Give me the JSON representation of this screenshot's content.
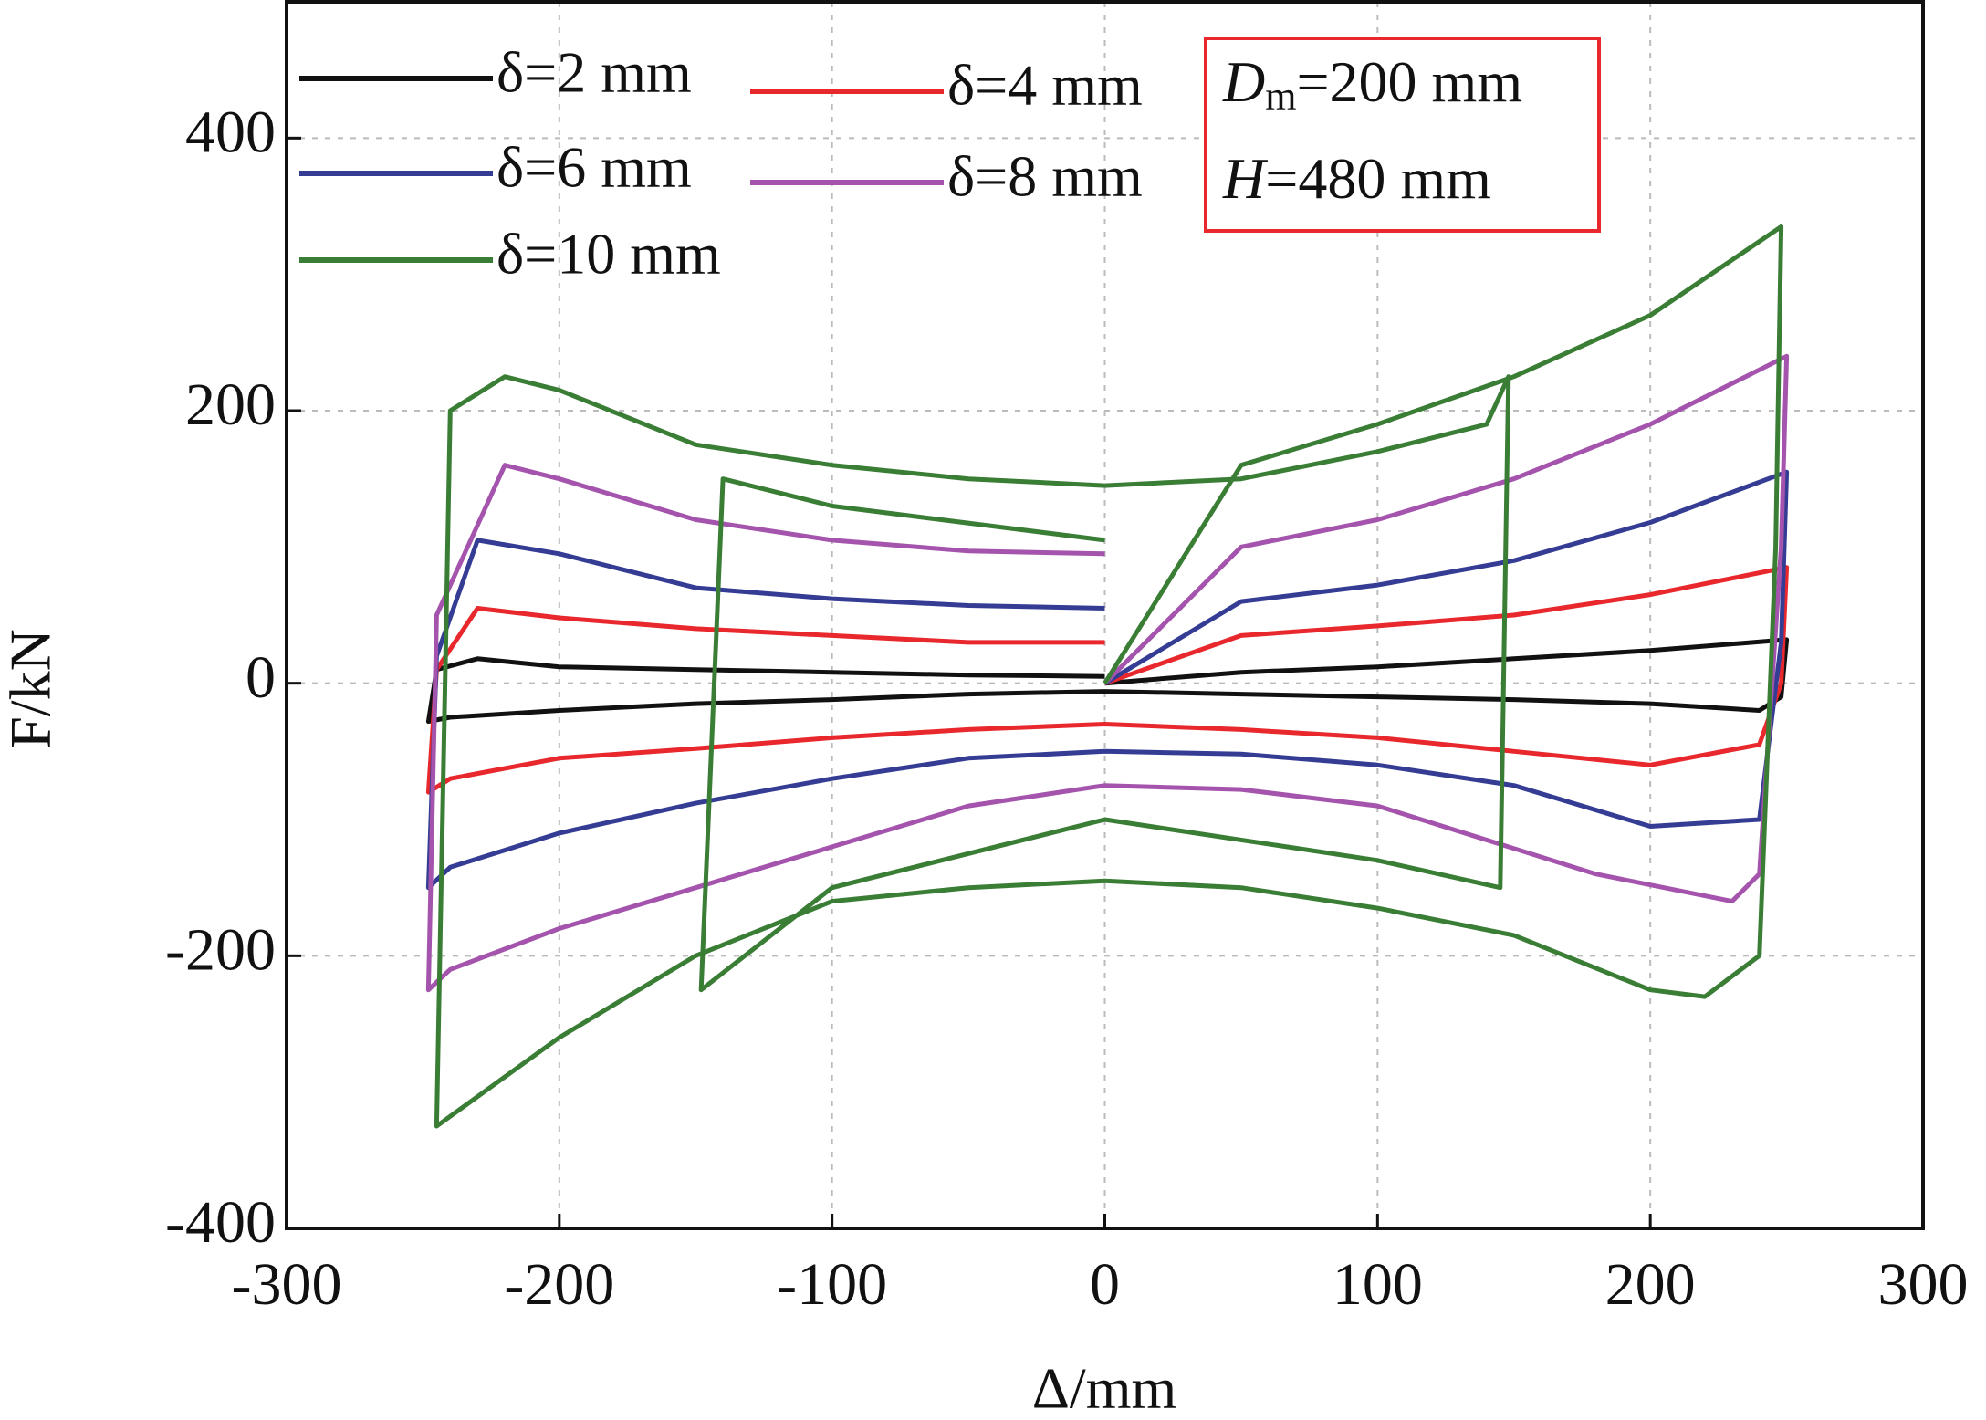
{
  "chart_data": {
    "type": "line",
    "x_label": "Δ/mm",
    "y_label": "F/kN",
    "xlim": [
      -300,
      300
    ],
    "xticks": [
      -300,
      -200,
      -100,
      0,
      100,
      200,
      300
    ],
    "ylim": [
      -400,
      500
    ],
    "yticks": [
      -400,
      -200,
      0,
      200,
      400
    ],
    "grid": true,
    "legend": "upper left",
    "annotation": {
      "lines": [
        [
          "D",
          "m",
          "=200 mm"
        ],
        [
          "H",
          "",
          "=480 mm"
        ]
      ],
      "color": "#e8282d"
    },
    "series": [
      {
        "name": "δ=2 mm",
        "color": "#111111",
        "x": [
          0,
          50,
          100,
          150,
          200,
          250,
          248,
          240,
          200,
          150,
          100,
          50,
          0,
          -50,
          -100,
          -150,
          -200,
          -240,
          -248,
          -245,
          -230,
          -200,
          -150,
          -100,
          -50,
          0
        ],
        "values": [
          0,
          8,
          12,
          18,
          24,
          32,
          -10,
          -20,
          -15,
          -12,
          -10,
          -8,
          -6,
          -8,
          -12,
          -15,
          -20,
          -25,
          -28,
          10,
          18,
          12,
          10,
          8,
          6,
          5
        ]
      },
      {
        "name": "δ=4 mm",
        "color": "#e8282d",
        "x": [
          0,
          50,
          100,
          150,
          200,
          250,
          248,
          240,
          200,
          150,
          100,
          50,
          0,
          -50,
          -100,
          -150,
          -200,
          -240,
          -248,
          -245,
          -230,
          -200,
          -150,
          -100,
          -50,
          0
        ],
        "values": [
          0,
          35,
          42,
          50,
          65,
          85,
          0,
          -45,
          -60,
          -50,
          -40,
          -34,
          -30,
          -34,
          -40,
          -48,
          -55,
          -70,
          -80,
          10,
          55,
          48,
          40,
          35,
          30,
          30
        ]
      },
      {
        "name": "δ=6 mm",
        "color": "#343c94",
        "x": [
          0,
          50,
          100,
          150,
          200,
          250,
          248,
          240,
          200,
          150,
          100,
          50,
          0,
          -50,
          -100,
          -150,
          -200,
          -240,
          -248,
          -245,
          -230,
          -200,
          -150,
          -100,
          -50,
          0
        ],
        "values": [
          0,
          60,
          72,
          90,
          118,
          155,
          30,
          -100,
          -105,
          -75,
          -60,
          -52,
          -50,
          -55,
          -70,
          -88,
          -110,
          -135,
          -150,
          20,
          105,
          95,
          70,
          62,
          57,
          55
        ]
      },
      {
        "name": "δ=8 mm",
        "color": "#a454ac",
        "x": [
          0,
          50,
          100,
          150,
          200,
          250,
          248,
          240,
          230,
          180,
          100,
          50,
          0,
          -50,
          -100,
          -150,
          -200,
          -240,
          -248,
          -245,
          -220,
          -200,
          -150,
          -100,
          -50,
          0
        ],
        "values": [
          0,
          100,
          120,
          150,
          190,
          240,
          100,
          -140,
          -160,
          -140,
          -90,
          -78,
          -75,
          -90,
          -120,
          -150,
          -180,
          -210,
          -225,
          50,
          160,
          150,
          120,
          105,
          97,
          95
        ]
      },
      {
        "name": "δ=10 mm",
        "color": "#3a7d35",
        "x": [
          0,
          50,
          100,
          150,
          200,
          248,
          246,
          240,
          220,
          200,
          150,
          100,
          50,
          0,
          -50,
          -100,
          -150,
          -200,
          -245,
          -240,
          -220,
          -200,
          -150,
          -100,
          -50,
          0,
          50,
          100,
          140,
          148,
          145,
          100,
          0,
          -100,
          -148,
          -140,
          -100,
          0
        ],
        "values": [
          0,
          160,
          190,
          225,
          270,
          335,
          100,
          -200,
          -230,
          -225,
          -185,
          -165,
          -150,
          -145,
          -150,
          -160,
          -200,
          -260,
          -325,
          200,
          225,
          215,
          175,
          160,
          150,
          145,
          150,
          170,
          190,
          225,
          -150,
          -130,
          -100,
          -150,
          -225,
          150,
          130,
          105
        ]
      }
    ]
  }
}
